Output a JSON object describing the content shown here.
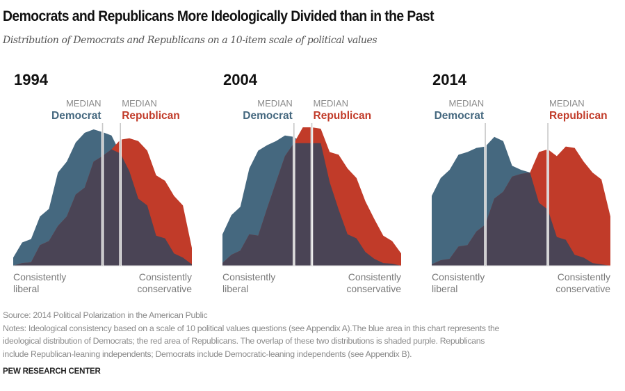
{
  "title": "Democrats and Republicans More Ideologically Divided than in the Past",
  "subtitle": "Distribution of Democrats and Republicans on a 10-item scale of political values",
  "colors": {
    "democrat": "#45687f",
    "republican": "#c13b29",
    "overlap": "#4a4455",
    "median_line": "#c8c8c8"
  },
  "labels": {
    "median": "MEDIAN",
    "democrat": "Democrat",
    "republican": "Republican",
    "left_axis": [
      "Consistently",
      "liberal"
    ],
    "right_axis": [
      "Consistently",
      "conservative"
    ]
  },
  "chart_data": [
    {
      "type": "area",
      "title": "1994",
      "x": [
        -10,
        -9,
        -8,
        -7,
        -6,
        -5,
        -4,
        -3,
        -2,
        -1,
        0,
        1,
        2,
        3,
        4,
        5,
        6,
        7,
        8,
        9,
        10
      ],
      "series": [
        {
          "name": "Democrat",
          "values": [
            6,
            17,
            19.5,
            36,
            41.5,
            68,
            76,
            90,
            97,
            99.5,
            97.5,
            95,
            82,
            69,
            49,
            44,
            22,
            20,
            9,
            6,
            1
          ]
        },
        {
          "name": "Republican",
          "values": [
            0,
            2,
            2.5,
            15,
            18,
            29,
            36,
            52,
            57,
            76,
            80,
            85,
            92,
            93,
            91,
            84,
            66,
            62,
            51,
            44,
            13
          ]
        }
      ],
      "medians": {
        "Democrat": 0,
        "Republican": 2
      }
    },
    {
      "type": "area",
      "title": "2004",
      "x": [
        -10,
        -9,
        -8,
        -7,
        -6,
        -5,
        -4,
        -3,
        -2,
        -1,
        0,
        1,
        2,
        3,
        4,
        5,
        6,
        7,
        8,
        9,
        10
      ],
      "series": [
        {
          "name": "Democrat",
          "values": [
            23,
            37,
            43,
            71,
            84,
            88,
            91,
            95,
            94,
            89.5,
            89.5,
            89.5,
            61,
            41,
            23,
            20,
            10,
            5,
            2,
            1.5,
            0
          ]
        },
        {
          "name": "Republican",
          "values": [
            2,
            8,
            11,
            23,
            22,
            42,
            61,
            80,
            89.5,
            101,
            101,
            100,
            83,
            81,
            71,
            64,
            47,
            34,
            22,
            18,
            9
          ]
        }
      ],
      "medians": {
        "Democrat": -2,
        "Republican": 0
      }
    },
    {
      "type": "area",
      "title": "2014",
      "x": [
        -10,
        -9,
        -8,
        -7,
        -6,
        -5,
        -4,
        -3,
        -2,
        -1,
        0,
        1,
        2,
        3,
        4,
        5,
        6,
        7,
        8,
        9,
        10
      ],
      "series": [
        {
          "name": "Democrat",
          "values": [
            51,
            64,
            70,
            81,
            83,
            86,
            87,
            94,
            91,
            73,
            70,
            68,
            46,
            41,
            21,
            19,
            8,
            6,
            2,
            1,
            0
          ]
        },
        {
          "name": "Republican",
          "values": [
            1,
            4,
            5,
            14,
            15,
            25,
            30,
            49,
            54,
            65,
            67,
            68,
            83,
            85,
            80,
            87,
            86,
            76,
            68,
            63,
            36
          ]
        }
      ],
      "medians": {
        "Democrat": -4,
        "Republican": 3
      }
    }
  ],
  "source": "Source: 2014 Political Polarization in the American Public",
  "notes": [
    "Notes: Ideological consistency based on a scale of 10 political values questions (see Appendix A).The blue area in this chart represents the",
    "ideological distribution of Democrats; the red area of Republicans. The overlap of these two distributions is shaded purple. Republicans",
    "include Republican-leaning independents; Democrats include Democratic-leaning independents (see Appendix B)."
  ],
  "brand": "PEW RESEARCH CENTER"
}
